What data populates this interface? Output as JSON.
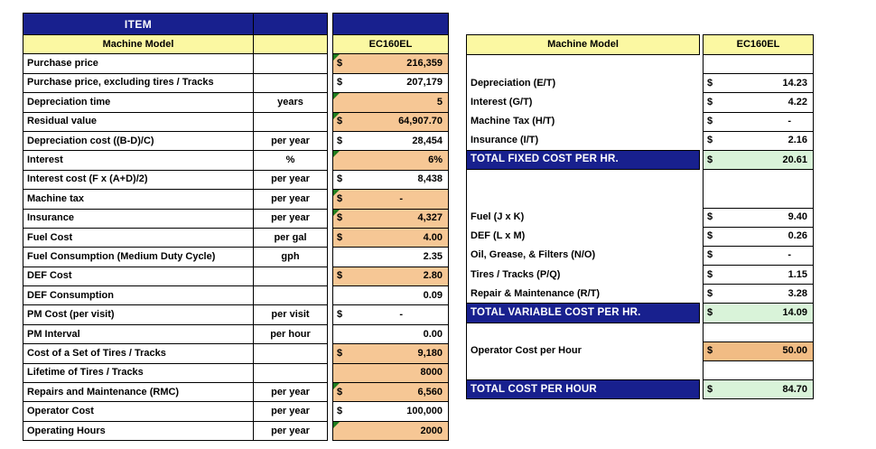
{
  "colors": {
    "navy": "#18208E",
    "yellow": "#FBF8A2",
    "orange": "#F6C795",
    "orange_deep": "#F1BC84",
    "green": "#D9F3D9",
    "flag_green": "#1E7C1E",
    "border": "#000000",
    "text": "#000000"
  },
  "left_table": {
    "title": "ITEM",
    "header": {
      "label": "Machine Model",
      "model": "EC160EL"
    },
    "rows": [
      {
        "label": "Purchase price",
        "unit": "",
        "currency": "$",
        "value": "216,359",
        "fill": "orange",
        "flag": true
      },
      {
        "label": "Purchase price, excluding tires / Tracks",
        "unit": "",
        "currency": "$",
        "value": "207,179",
        "fill": "white",
        "flag": false
      },
      {
        "label": "Depreciation time",
        "unit": "years",
        "currency": "",
        "value": "5",
        "fill": "orange",
        "flag": true
      },
      {
        "label": "Residual value",
        "unit": "",
        "currency": "$",
        "value": "64,907.70",
        "fill": "orange",
        "flag": true
      },
      {
        "label": "Depreciation cost ((B-D)/C)",
        "unit": "per year",
        "currency": "$",
        "value": "28,454",
        "fill": "white",
        "flag": false
      },
      {
        "label": "Interest",
        "unit": "%",
        "currency": "",
        "value": "6%",
        "fill": "orange",
        "flag": true
      },
      {
        "label": "Interest cost (F x (A+D)/2)",
        "unit": "per year",
        "currency": "$",
        "value": "8,438",
        "fill": "white",
        "flag": false
      },
      {
        "label": "Machine tax",
        "unit": "per year",
        "currency": "$",
        "value": "-",
        "fill": "orange",
        "flag": true
      },
      {
        "label": "Insurance",
        "unit": "per year",
        "currency": "$",
        "value": "4,327",
        "fill": "orange",
        "flag": true
      },
      {
        "label": "Fuel Cost",
        "unit": "per gal",
        "currency": "$",
        "value": "4.00",
        "fill": "orange",
        "flag": false
      },
      {
        "label": "Fuel Consumption (Medium Duty Cycle)",
        "unit": "gph",
        "currency": "",
        "value": "2.35",
        "fill": "white",
        "flag": false
      },
      {
        "label": "DEF Cost",
        "unit": "",
        "currency": "$",
        "value": "2.80",
        "fill": "orange",
        "flag": false
      },
      {
        "label": "DEF Consumption",
        "unit": "",
        "currency": "",
        "value": "0.09",
        "fill": "white",
        "flag": false
      },
      {
        "label": "PM Cost (per visit)",
        "unit": "per visit",
        "currency": "$",
        "value": "-",
        "fill": "white",
        "flag": false
      },
      {
        "label": "PM Interval",
        "unit": "per hour",
        "currency": "",
        "value": "0.00",
        "fill": "white",
        "flag": false
      },
      {
        "label": "Cost of a Set of Tires / Tracks",
        "unit": "",
        "currency": "$",
        "value": "9,180",
        "fill": "orange",
        "flag": false
      },
      {
        "label": "Lifetime of Tires / Tracks",
        "unit": "",
        "currency": "",
        "value": "8000",
        "fill": "orange",
        "flag": false
      },
      {
        "label": "Repairs and Maintenance (RMC)",
        "unit": "per year",
        "currency": "$",
        "value": "6,560",
        "fill": "orange",
        "flag": true
      },
      {
        "label": "Operator Cost",
        "unit": "per year",
        "currency": "$",
        "value": "100,000",
        "fill": "white",
        "flag": false
      },
      {
        "label": "Operating Hours",
        "unit": "per year",
        "currency": "",
        "value": "2000",
        "fill": "orange",
        "flag": true
      }
    ]
  },
  "right_table": {
    "header": {
      "label": "Machine Model",
      "model": "EC160EL"
    },
    "rows": [
      {
        "type": "spacer",
        "span": 1
      },
      {
        "type": "item",
        "label": "Depreciation (E/T)",
        "currency": "$",
        "value": "14.23"
      },
      {
        "type": "item",
        "label": "Interest (G/T)",
        "currency": "$",
        "value": "4.22"
      },
      {
        "type": "item",
        "label": "Machine Tax (H/T)",
        "currency": "$",
        "value": "-"
      },
      {
        "type": "item",
        "label": "Insurance (I/T)",
        "currency": "$",
        "value": "2.16"
      },
      {
        "type": "total",
        "label": "TOTAL FIXED COST PER HR.",
        "currency": "$",
        "value": "20.61"
      },
      {
        "type": "spacer",
        "span": 2
      },
      {
        "type": "item",
        "label": "Fuel (J x K)",
        "currency": "$",
        "value": "9.40"
      },
      {
        "type": "item",
        "label": "DEF (L x M)",
        "currency": "$",
        "value": "0.26"
      },
      {
        "type": "item",
        "label": "Oil, Grease, & Filters (N/O)",
        "currency": "$",
        "value": "-"
      },
      {
        "type": "item",
        "label": "Tires / Tracks (P/Q)",
        "currency": "$",
        "value": "1.15"
      },
      {
        "type": "item",
        "label": "Repair & Maintenance (R/T)",
        "currency": "$",
        "value": "3.28"
      },
      {
        "type": "total",
        "label": "TOTAL VARIABLE COST PER HR.",
        "currency": "$",
        "value": "14.09"
      },
      {
        "type": "spacer",
        "span": 1
      },
      {
        "type": "input",
        "label": "Operator Cost per Hour",
        "currency": "$",
        "value": "50.00"
      },
      {
        "type": "spacer",
        "span": 1
      },
      {
        "type": "total",
        "label": "TOTAL COST PER HOUR",
        "currency": "$",
        "value": "84.70"
      }
    ]
  }
}
